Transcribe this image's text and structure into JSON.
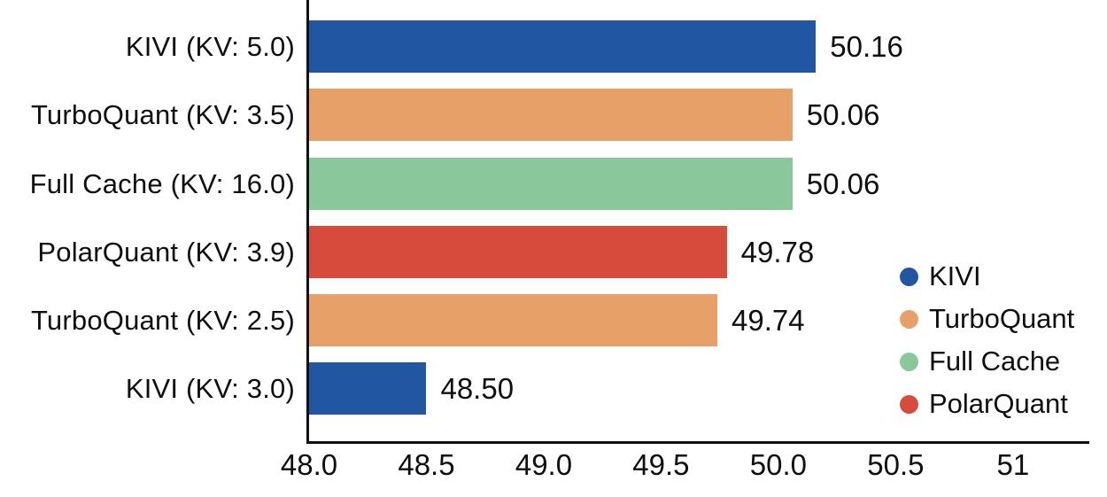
{
  "chart_data": {
    "type": "bar",
    "orientation": "horizontal",
    "title": "",
    "xlabel": "",
    "ylabel": "",
    "grid": false,
    "categories": [
      "KIVI (KV: 5.0)",
      "TurboQuant (KV: 3.5)",
      "Full Cache (KV: 16.0)",
      "PolarQuant (KV: 3.9)",
      "TurboQuant (KV: 2.5)",
      "KIVI (KV: 3.0)"
    ],
    "values": [
      50.16,
      50.06,
      50.06,
      49.78,
      49.74,
      48.5
    ],
    "value_labels": [
      "50.16",
      "50.06",
      "50.06",
      "49.78",
      "49.74",
      "48.50"
    ],
    "bar_series": [
      "KIVI",
      "TurboQuant",
      "Full Cache",
      "PolarQuant",
      "TurboQuant",
      "KIVI"
    ],
    "bar_colors": [
      "#2156a2",
      "#e8a069",
      "#8ac79b",
      "#d74b3d",
      "#e8a069",
      "#2156a2"
    ],
    "xlim": [
      48.0,
      51.31
    ],
    "xticks": [
      48.0,
      48.5,
      49.0,
      49.5,
      50.0,
      50.5,
      51.0
    ],
    "xtick_labels": [
      "48.0",
      "48.5",
      "49.0",
      "49.5",
      "50.0",
      "50.5",
      "51"
    ],
    "legend": {
      "position": "right",
      "entries": [
        {
          "label": "KIVI",
          "color": "#2156a2"
        },
        {
          "label": "TurboQuant",
          "color": "#e8a069"
        },
        {
          "label": "Full Cache",
          "color": "#8ac79b"
        },
        {
          "label": "PolarQuant",
          "color": "#d74b3d"
        }
      ]
    },
    "axis_color": "#111111",
    "text_color": "#0f0f0f",
    "background_color": "#ffffff"
  }
}
